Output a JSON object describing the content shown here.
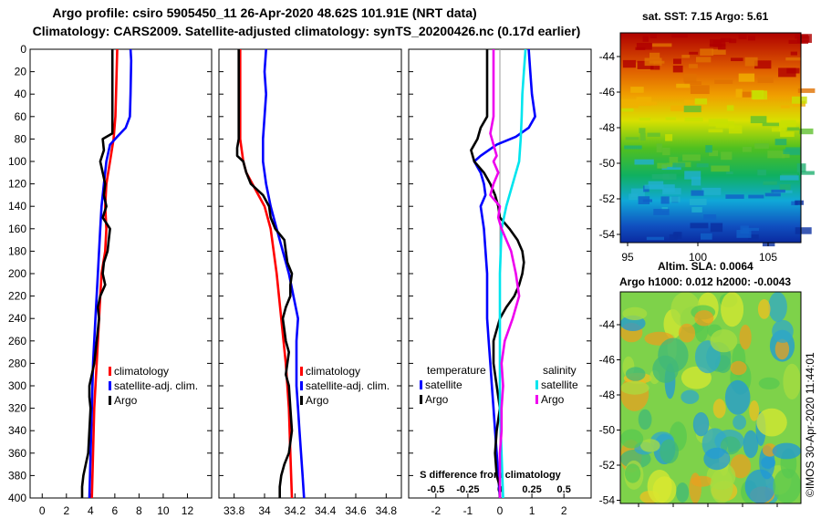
{
  "header": {
    "title_line1": "Argo profile: csiro 5905450_11 26-Apr-2020 48.62S 101.91E (NRT data)",
    "title_line2": "Climatology: CARS2009. Satellite-adjusted climatology: synTS_20200426.nc (0.17d earlier)"
  },
  "colors": {
    "climatology": "#ff0000",
    "satellite": "#0000ff",
    "argo": "#000000",
    "satellite_salinity": "#00e5ee",
    "argo_salinity": "#ee00ee"
  },
  "chart_data": [
    {
      "type": "line",
      "id": "temperature",
      "x_ticks": [
        "0",
        "2",
        "4",
        "6",
        "8",
        "10",
        "12"
      ],
      "xlim": [
        -1,
        14
      ],
      "ylim": [
        0,
        400
      ],
      "y_ticks": [
        "0",
        "20",
        "40",
        "60",
        "80",
        "100",
        "120",
        "140",
        "160",
        "180",
        "200",
        "220",
        "240",
        "260",
        "280",
        "300",
        "320",
        "340",
        "360",
        "380",
        "400"
      ],
      "legend": [
        "climatology",
        "satellite-adj. clim.",
        "Argo"
      ],
      "series": [
        {
          "name": "climatology",
          "color": "#ff0000",
          "depth": [
            0,
            40,
            60,
            80,
            100,
            120,
            140,
            160,
            180,
            200,
            240,
            280,
            320,
            360,
            400
          ],
          "value": [
            6.2,
            6.1,
            6.05,
            5.9,
            5.6,
            5.3,
            5.2,
            5.3,
            5.2,
            4.9,
            4.7,
            4.5,
            4.3,
            4.2,
            4.1
          ]
        },
        {
          "name": "satellite-adj. clim.",
          "color": "#0000ff",
          "depth": [
            0,
            10,
            40,
            60,
            70,
            78,
            85,
            100,
            120,
            140,
            160,
            200,
            240,
            280,
            320,
            360,
            400
          ],
          "value": [
            7.3,
            7.35,
            7.3,
            7.25,
            6.9,
            6.2,
            5.6,
            5.3,
            5.1,
            4.9,
            4.8,
            4.6,
            4.4,
            4.2,
            4.1,
            4.0,
            3.9
          ]
        },
        {
          "name": "Argo",
          "color": "#000000",
          "depth": [
            0,
            75,
            80,
            90,
            100,
            110,
            120,
            130,
            140,
            150,
            160,
            170,
            180,
            190,
            200,
            210,
            220,
            230,
            240,
            250,
            260,
            280,
            290,
            300,
            310,
            320,
            340,
            360,
            370,
            380,
            390,
            400
          ],
          "value": [
            5.8,
            5.8,
            5.0,
            5.1,
            4.8,
            5.0,
            5.2,
            5.1,
            5.3,
            5.0,
            5.6,
            5.5,
            5.4,
            5.1,
            5.0,
            5.2,
            4.8,
            4.6,
            4.7,
            4.6,
            4.5,
            4.3,
            4.1,
            3.9,
            3.9,
            4.0,
            3.9,
            3.8,
            3.6,
            3.4,
            3.3,
            3.3
          ]
        }
      ]
    },
    {
      "type": "line",
      "id": "salinity",
      "x_ticks": [
        "33.8",
        "34",
        "34.2",
        "34.4",
        "34.6",
        "34.8"
      ],
      "xlim": [
        33.7,
        34.9
      ],
      "ylim": [
        0,
        400
      ],
      "legend": [
        "climatology",
        "satellite-adj. clim.",
        "Argo"
      ],
      "series": [
        {
          "name": "climatology",
          "color": "#ff0000",
          "depth": [
            0,
            80,
            100,
            110,
            120,
            130,
            140,
            160,
            200,
            240,
            280,
            320,
            360,
            400
          ],
          "value": [
            33.84,
            33.84,
            33.86,
            33.88,
            33.92,
            33.96,
            34.0,
            34.04,
            34.08,
            34.11,
            34.14,
            34.16,
            34.17,
            34.18
          ]
        },
        {
          "name": "satellite-adj. clim.",
          "color": "#0000ff",
          "depth": [
            0,
            20,
            40,
            60,
            80,
            100,
            120,
            140,
            160,
            180,
            200,
            220,
            240,
            260,
            280,
            300,
            320,
            340,
            360,
            380,
            400
          ],
          "value": [
            34.01,
            34.0,
            34.01,
            34.0,
            33.99,
            33.99,
            34.01,
            34.04,
            34.08,
            34.12,
            34.16,
            34.19,
            34.22,
            34.21,
            34.21,
            34.21,
            34.22,
            34.23,
            34.24,
            34.25,
            34.26
          ]
        },
        {
          "name": "Argo",
          "color": "#000000",
          "depth": [
            0,
            80,
            88,
            95,
            100,
            105,
            110,
            120,
            130,
            140,
            150,
            160,
            170,
            180,
            190,
            200,
            210,
            220,
            230,
            240,
            250,
            260,
            270,
            280,
            290,
            300,
            320,
            340,
            360,
            370,
            380,
            390,
            400
          ],
          "value": [
            33.83,
            33.83,
            33.82,
            33.82,
            33.86,
            33.87,
            33.88,
            33.91,
            33.99,
            34.03,
            34.04,
            34.07,
            34.13,
            34.14,
            34.15,
            34.18,
            34.17,
            34.17,
            34.14,
            34.12,
            34.13,
            34.14,
            34.16,
            34.15,
            34.14,
            34.16,
            34.17,
            34.18,
            34.16,
            34.13,
            34.11,
            34.1,
            34.1
          ]
        }
      ]
    },
    {
      "type": "line",
      "id": "difference",
      "x_ticks": [
        "-2",
        "-1",
        "0",
        "1",
        "2"
      ],
      "xlim": [
        -2.85,
        2.85
      ],
      "ylim": [
        0,
        400
      ],
      "secondary_ticks": [
        "-0.5",
        "-0.25",
        "0",
        "0.25",
        "0.5"
      ],
      "secondary_label": "S difference from climatology",
      "legend_left_title": "temperature",
      "legend_right_title": "salinity",
      "legend": [
        "satellite",
        "Argo",
        "satellite",
        "Argo"
      ],
      "series": [
        {
          "name": "temperature satellite",
          "color": "#0000ff",
          "depth": [
            0,
            20,
            40,
            60,
            70,
            78,
            85,
            95,
            100,
            110,
            120,
            130,
            140,
            160,
            200,
            240,
            260,
            280,
            300,
            320,
            340,
            360,
            380,
            400
          ],
          "value": [
            0.9,
            0.95,
            1.0,
            1.1,
            0.9,
            0.5,
            -0.1,
            -0.6,
            -0.8,
            -0.6,
            -0.5,
            -0.45,
            -0.6,
            -0.5,
            -0.4,
            -0.4,
            -0.35,
            -0.3,
            -0.25,
            -0.2,
            -0.15,
            -0.1,
            -0.05,
            0.0
          ]
        },
        {
          "name": "temperature Argo",
          "color": "#000000",
          "depth": [
            0,
            60,
            70,
            80,
            90,
            100,
            110,
            120,
            130,
            140,
            150,
            160,
            170,
            180,
            190,
            200,
            210,
            220,
            230,
            240,
            250,
            260,
            280,
            300,
            320,
            340,
            360,
            380,
            390,
            400
          ],
          "value": [
            -0.4,
            -0.4,
            -0.6,
            -0.7,
            -0.9,
            -0.8,
            -0.5,
            -0.3,
            -0.15,
            -0.05,
            0.0,
            0.3,
            0.55,
            0.7,
            0.75,
            0.7,
            0.6,
            0.45,
            0.2,
            0.0,
            -0.1,
            -0.2,
            -0.2,
            -0.1,
            0.0,
            -0.1,
            -0.15,
            -0.1,
            0.0,
            0.0
          ]
        },
        {
          "name": "salinity satellite",
          "color": "#00e5ee",
          "depth": [
            0,
            20,
            40,
            60,
            80,
            100,
            120,
            140,
            160,
            200,
            240,
            280,
            320,
            360,
            400
          ],
          "value": [
            0.8,
            0.75,
            0.7,
            0.68,
            0.65,
            0.6,
            0.4,
            0.2,
            0.05,
            0.0,
            0.0,
            0.0,
            0.0,
            0.05,
            0.1
          ]
        },
        {
          "name": "salinity Argo",
          "color": "#ee00ee",
          "depth": [
            0,
            60,
            75,
            85,
            95,
            100,
            110,
            120,
            130,
            140,
            150,
            160,
            180,
            200,
            220,
            240,
            260,
            280,
            300,
            320,
            340,
            360,
            380,
            400
          ],
          "value": [
            -0.2,
            -0.2,
            -0.3,
            -0.2,
            -0.1,
            -0.2,
            -0.05,
            -0.2,
            -0.3,
            0.0,
            -0.05,
            0.05,
            0.35,
            0.5,
            0.6,
            0.4,
            0.15,
            0.05,
            0.1,
            0.05,
            0.05,
            0.0,
            0.0,
            0.0
          ]
        }
      ]
    }
  ],
  "sst_map": {
    "title": "sat. SST: 7.15 Argo: 5.61",
    "lat_ticks": [
      "-44",
      "-46",
      "-48",
      "-50",
      "-52",
      "-54"
    ],
    "lon_ticks": [
      "95",
      "100",
      "105"
    ]
  },
  "sla_map": {
    "title1": "Altim. SLA: 0.0064",
    "title2": "Argo h1000: 0.012 h2000: -0.0043",
    "lat_ticks": [
      "-44",
      "-46",
      "-48",
      "-50",
      "-52",
      "-54"
    ]
  },
  "footer": {
    "credit": "©IMOS 30-Apr-2020 11:44:01"
  }
}
